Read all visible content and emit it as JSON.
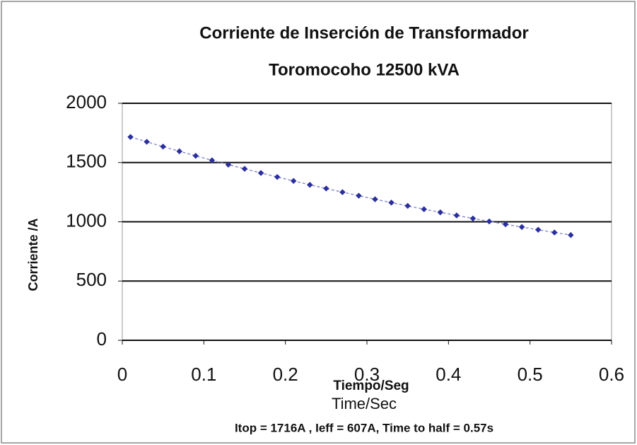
{
  "chart_data": {
    "type": "scatter",
    "title": "Corriente de Inserción de Transformador",
    "subtitle": "Toromocoho 12500 kVA",
    "y_label": "Corriente /A",
    "x_label": "Tiempo/Seg",
    "x_label_secondary": "Time/Sec",
    "annotation": "Itop = 1716A , Ieff = 607A, Time to half = 0.57s",
    "color": "#2b2f9e",
    "x": [
      0.01,
      0.03,
      0.05,
      0.07,
      0.09,
      0.11,
      0.13,
      0.15,
      0.17,
      0.19,
      0.21,
      0.23,
      0.25,
      0.27,
      0.29,
      0.31,
      0.33,
      0.35,
      0.37,
      0.39,
      0.41,
      0.43,
      0.45,
      0.47,
      0.49,
      0.51,
      0.53,
      0.55
    ],
    "values": [
      1716,
      1675,
      1634,
      1595,
      1557,
      1519,
      1482,
      1447,
      1412,
      1378,
      1345,
      1312,
      1281,
      1250,
      1220,
      1190,
      1162,
      1134,
      1106,
      1080,
      1054,
      1028,
      1003,
      979,
      956,
      933,
      910,
      888
    ],
    "xlim": [
      0,
      0.6
    ],
    "xticks": [
      0,
      0.1,
      0.2,
      0.3,
      0.4,
      0.5,
      0.6
    ],
    "ylim": [
      0,
      2000
    ],
    "yticks": [
      0,
      500,
      1000,
      1500,
      2000
    ],
    "grid": true
  }
}
